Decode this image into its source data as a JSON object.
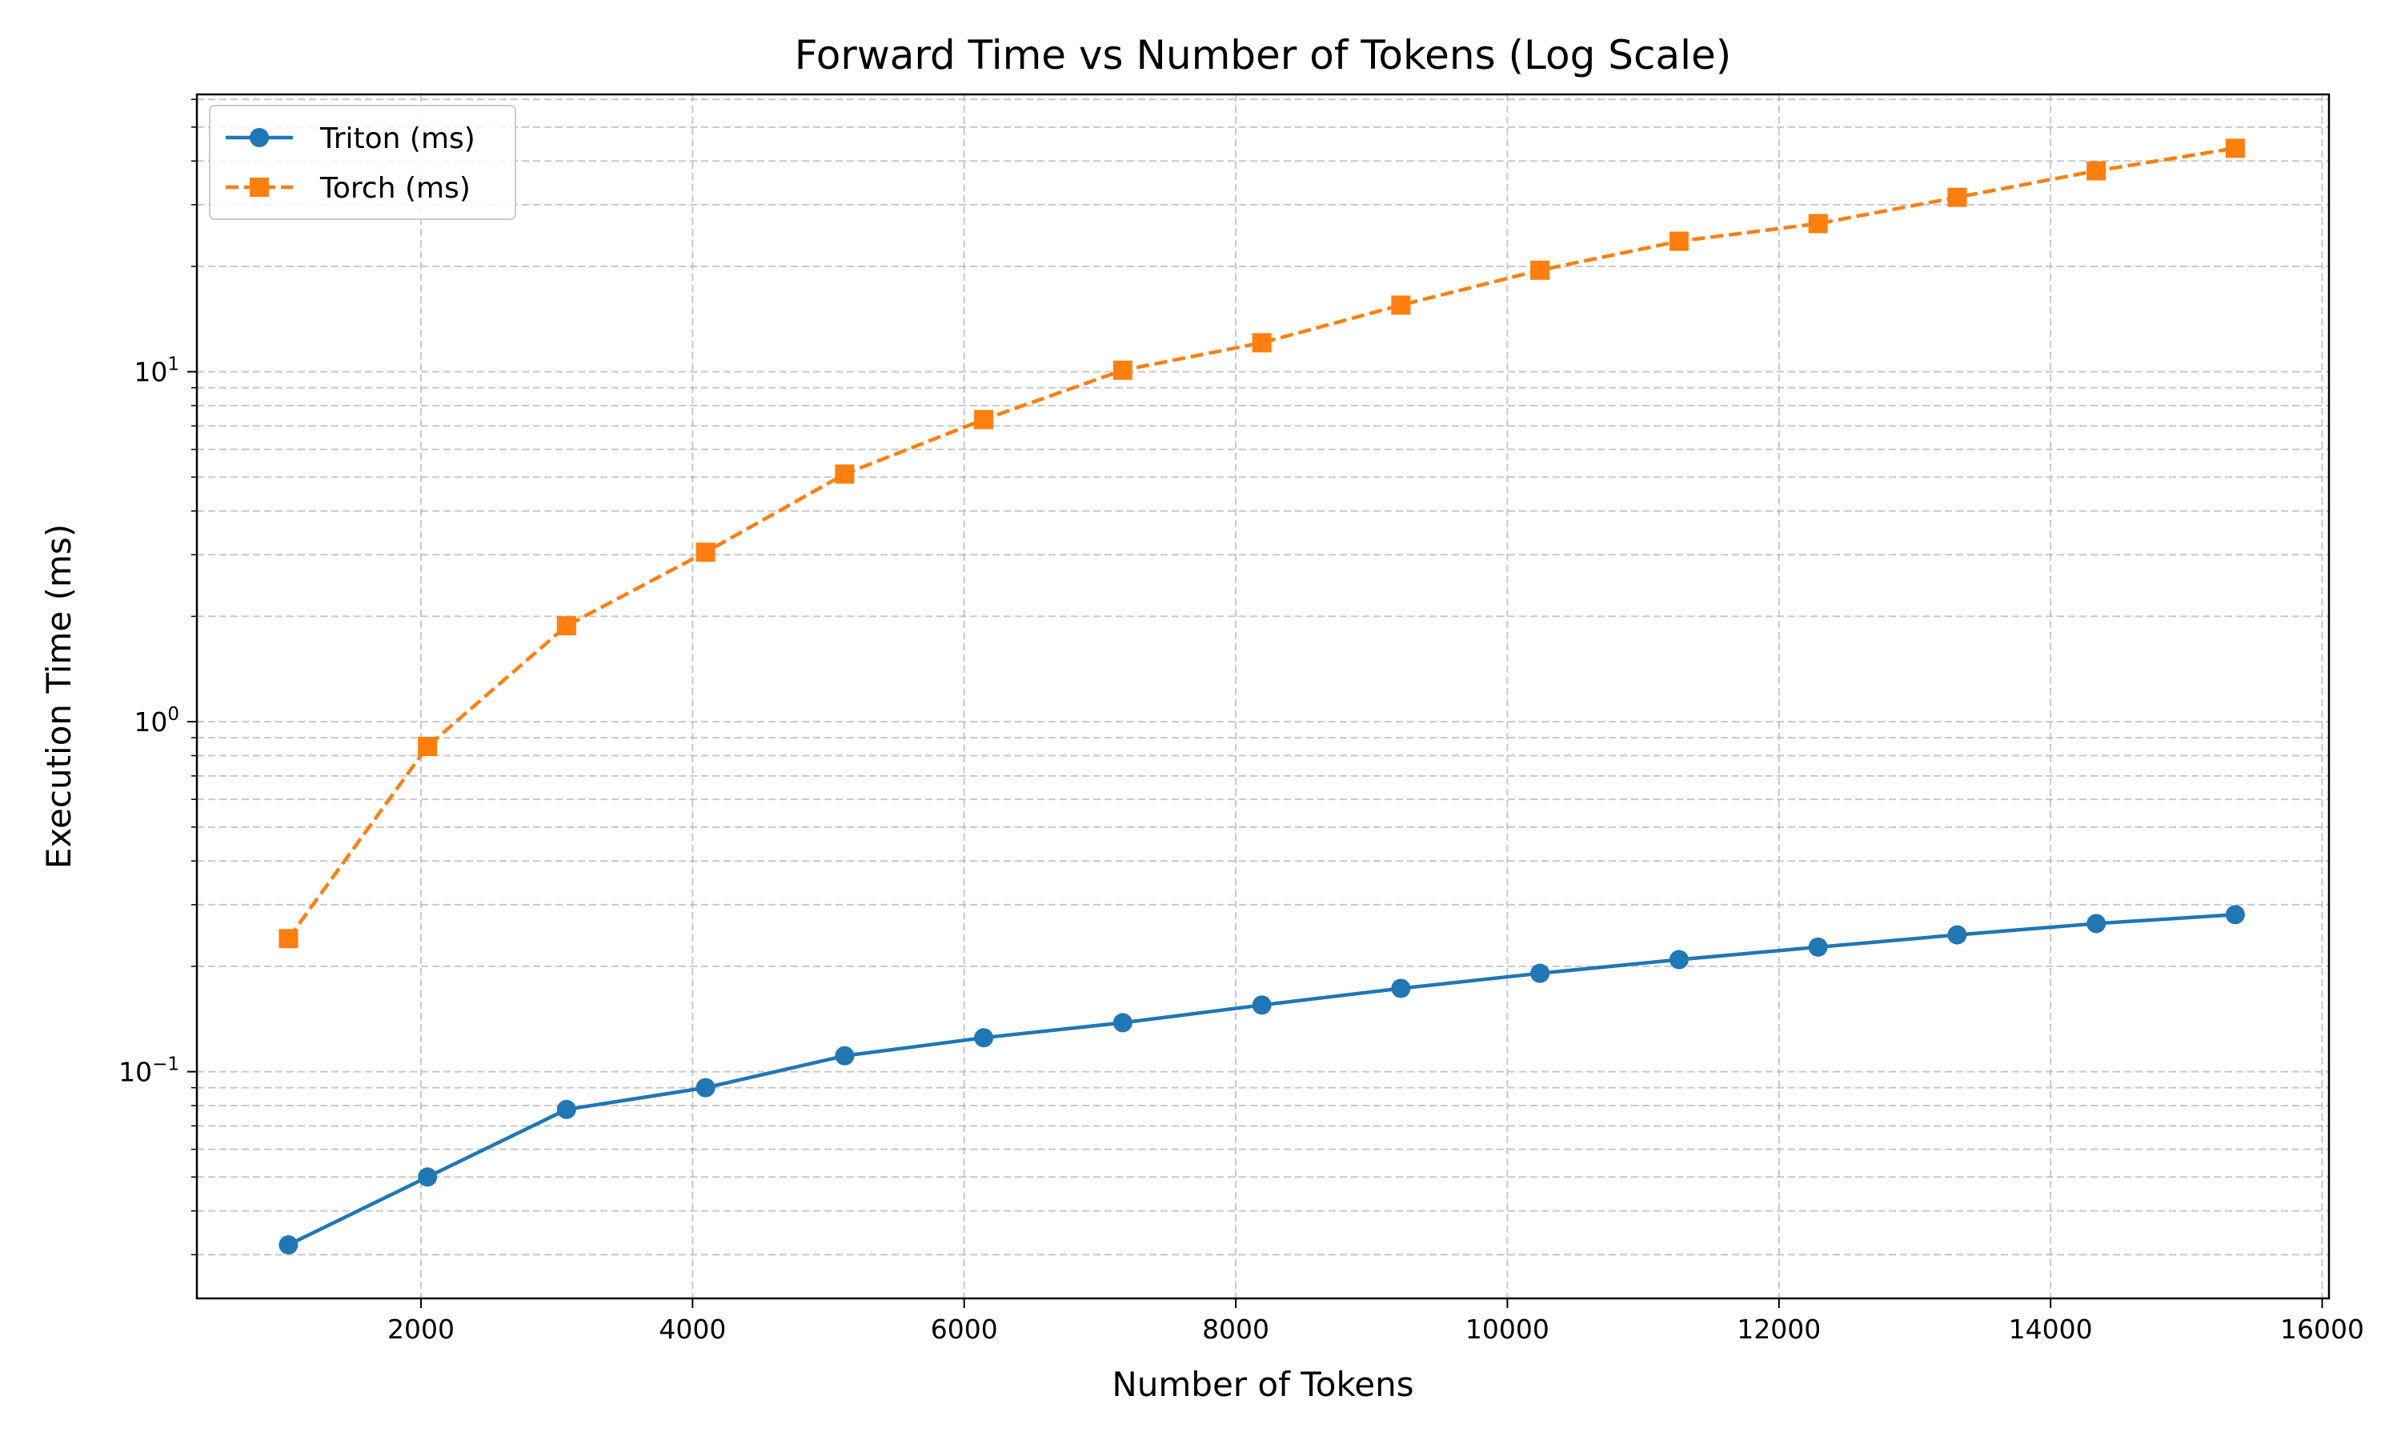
{
  "chart_data": {
    "type": "line",
    "title": "Forward Time vs Number of Tokens (Log Scale)",
    "xlabel": "Number of Tokens",
    "ylabel": "Execution Time (ms)",
    "yscale": "log",
    "xlim": [
      350,
      16050
    ],
    "ylim": [
      0.0225,
      62
    ],
    "x_ticks": [
      2000,
      4000,
      6000,
      8000,
      10000,
      12000,
      14000,
      16000
    ],
    "x_tick_labels": [
      "2000",
      "4000",
      "6000",
      "8000",
      "10000",
      "12000",
      "14000",
      "16000"
    ],
    "y_ticks": [
      {
        "value": 0.1,
        "base": "10",
        "exp": "−1"
      },
      {
        "value": 1,
        "base": "10",
        "exp": "0"
      },
      {
        "value": 10,
        "base": "10",
        "exp": "1"
      }
    ],
    "grid": true,
    "legend_position": "top-left",
    "x": [
      1024,
      2048,
      3072,
      4096,
      5120,
      6144,
      7168,
      8192,
      9216,
      10240,
      11264,
      12288,
      13312,
      14336,
      15360
    ],
    "series": [
      {
        "name": "Triton (ms)",
        "color": "#1f77b4",
        "marker": "circle",
        "linestyle": "solid",
        "values": [
          0.032,
          0.05,
          0.078,
          0.09,
          0.111,
          0.125,
          0.138,
          0.155,
          0.173,
          0.191,
          0.209,
          0.227,
          0.246,
          0.265,
          0.281
        ]
      },
      {
        "name": "Torch (ms)",
        "color": "#ff7f0e",
        "marker": "square",
        "linestyle": "dashed",
        "values": [
          0.24,
          0.85,
          1.88,
          3.05,
          5.1,
          7.3,
          10.1,
          12.1,
          15.5,
          19.5,
          23.6,
          26.5,
          31.5,
          37.5,
          43.5
        ]
      }
    ]
  }
}
